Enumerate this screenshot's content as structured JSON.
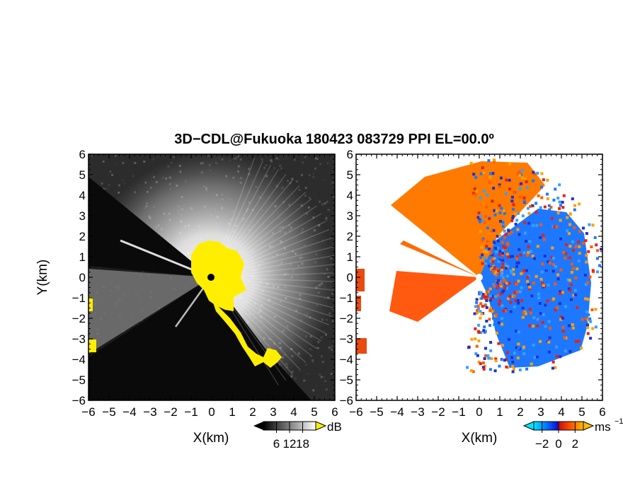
{
  "title": "3D−CDL@Fukuoka 180423 083729 PPI EL=00.0º",
  "chart_data": [
    {
      "type": "heatmap",
      "panel": "reflectivity",
      "xlabel": "X(km)",
      "ylabel": "Y(km)",
      "xlim": [
        -6,
        6
      ],
      "ylim": [
        -6,
        6
      ],
      "xticks": [
        "−6",
        "−5",
        "−4",
        "−3",
        "−2",
        "−1",
        "0",
        "1",
        "2",
        "3",
        "4",
        "5",
        "6"
      ],
      "yticks": [
        "6",
        "5",
        "4",
        "3",
        "2",
        "1",
        "0",
        "−1",
        "−2",
        "−3",
        "−4",
        "−5",
        "−6"
      ],
      "colorbar": {
        "unit": "dB",
        "ticks": [
          "6",
          "12",
          "18"
        ],
        "range": [
          0,
          24
        ],
        "colors": [
          "#000000",
          "#ffffff"
        ],
        "over_color": "#ffee00"
      },
      "colors": {
        "background": "#1c1c1c",
        "echo": "#ffffff",
        "over": "#ffee00"
      },
      "grid": false
    },
    {
      "type": "heatmap",
      "panel": "radial velocity",
      "xlabel": "X(km)",
      "ylabel": "",
      "xlim": [
        -6,
        6
      ],
      "ylim": [
        -6,
        6
      ],
      "xticks": [
        "−6",
        "−5",
        "−4",
        "−3",
        "−2",
        "−1",
        "0",
        "1",
        "2",
        "3",
        "4",
        "5",
        "6"
      ],
      "yticks": [
        "6",
        "5",
        "4",
        "3",
        "2",
        "1",
        "0",
        "−1",
        "−2",
        "−3",
        "−4",
        "−5",
        "−6"
      ],
      "colorbar": {
        "unit": "ms",
        "unit_exponent": "−1",
        "ticks": [
          "−2",
          "0",
          "2"
        ],
        "range": [
          -3,
          3
        ],
        "colors": [
          "#00e5ff",
          "#0060ff",
          "#1010cc",
          "#d01010",
          "#ff5500",
          "#ffbb00"
        ]
      },
      "colors": {
        "approaching": "#1e78ff",
        "receding": "#ff5a00",
        "near_zero": "#2030d0"
      },
      "grid": false
    }
  ]
}
